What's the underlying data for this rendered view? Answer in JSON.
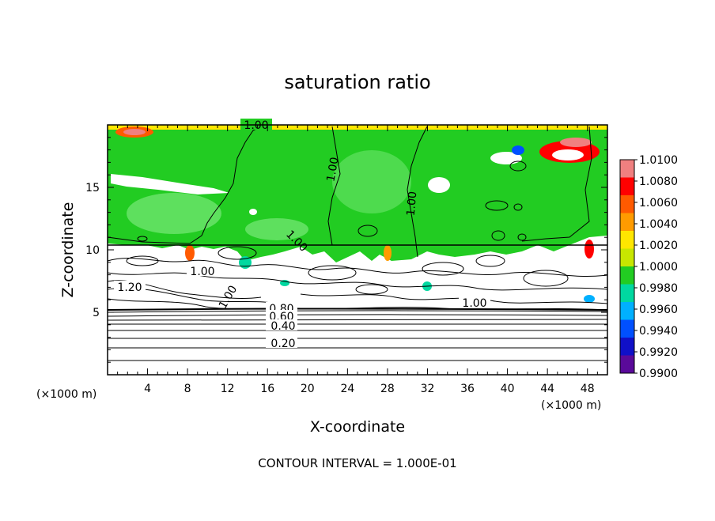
{
  "chart_data": {
    "type": "heatmap",
    "title": "saturation ratio",
    "xlabel": "X-coordinate",
    "ylabel": "Z-coordinate",
    "x_unit": "(×1000 m)",
    "z_unit": "(×1000 m)",
    "xlim": [
      0,
      50
    ],
    "ylim": [
      0,
      20
    ],
    "x_ticks": [
      "4",
      "8",
      "12",
      "16",
      "20",
      "24",
      "28",
      "32",
      "36",
      "40",
      "44",
      "48"
    ],
    "y_ticks": [
      "5",
      "10",
      "15"
    ],
    "colorbar": {
      "min": 0.99,
      "max": 1.01,
      "ticks": [
        "1.0100",
        "1.0080",
        "1.0060",
        "1.0040",
        "1.0020",
        "1.0000",
        "0.9980",
        "0.9960",
        "0.9940",
        "0.9920",
        "0.9900"
      ],
      "colors": [
        "#f08080",
        "#ff0000",
        "#ff5a00",
        "#ff9b00",
        "#ffe600",
        "#c8e600",
        "#22cc22",
        "#00d8a0",
        "#00b0ff",
        "#0050ff",
        "#1010c8",
        "#5a0a9a"
      ]
    },
    "contour_labels": [
      "1.00",
      "1.00",
      "1.00",
      "1.00",
      "1.00",
      "1.20",
      "1.00",
      "1.00",
      "0.80",
      "0.60",
      "0.40",
      "0.20"
    ],
    "contour_interval": "CONTOUR INTERVAL = 1.000E-01"
  }
}
